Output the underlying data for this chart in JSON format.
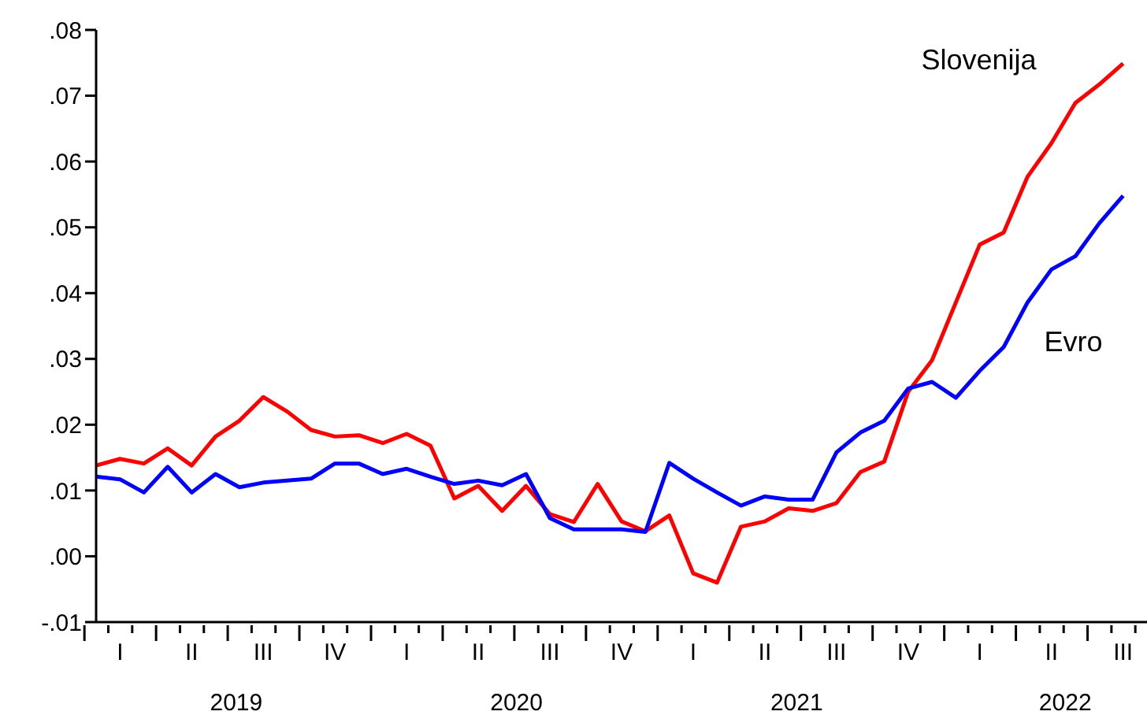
{
  "chart_data": {
    "type": "line",
    "categories": [
      null,
      "I",
      null,
      null,
      "II",
      null,
      null,
      "III",
      null,
      null,
      "IV",
      null,
      null,
      "I",
      null,
      null,
      "II",
      null,
      null,
      "III",
      null,
      null,
      "IV",
      null,
      null,
      "I",
      null,
      null,
      "II",
      null,
      null,
      "III",
      null,
      null,
      "IV",
      null,
      null,
      "I",
      null,
      null,
      "II",
      null,
      null,
      "III",
      null
    ],
    "series": [
      {
        "name": "Slovenija",
        "color": "#ff0000",
        "values": [
          0.0138,
          0.0148,
          0.0141,
          0.0164,
          0.0138,
          0.0182,
          0.0206,
          0.0242,
          0.022,
          0.0192,
          0.0182,
          0.0184,
          0.0172,
          0.0186,
          0.0168,
          0.0088,
          0.0107,
          0.0069,
          0.0107,
          0.0064,
          0.0052,
          0.011,
          0.0053,
          0.0038,
          0.0062,
          -0.0026,
          -0.004,
          0.0045,
          0.0053,
          0.0073,
          0.0069,
          0.0081,
          0.0128,
          0.0144,
          0.025,
          0.0298,
          0.0386,
          0.0474,
          0.0492,
          0.0577,
          0.0628,
          0.0689,
          0.0717,
          0.0749,
          null
        ]
      },
      {
        "name": "Evro",
        "color": "#0000ff",
        "values": [
          0.0121,
          0.0117,
          0.0097,
          0.0136,
          0.0097,
          0.0125,
          0.0105,
          0.0112,
          0.0115,
          0.0118,
          0.0141,
          0.0141,
          0.0125,
          0.0133,
          0.0121,
          0.011,
          0.0115,
          0.0108,
          0.0125,
          0.0058,
          0.0041,
          0.0041,
          0.0041,
          0.0037,
          0.0142,
          0.0118,
          0.0097,
          0.0077,
          0.0091,
          0.0086,
          0.0086,
          0.0158,
          0.0188,
          0.0206,
          0.0255,
          0.0265,
          0.0241,
          0.0282,
          0.0318,
          0.0386,
          0.0436,
          0.0456,
          0.0506,
          0.0548,
          null
        ]
      }
    ],
    "annotations": [
      "2019",
      "2020",
      "2021",
      "2022"
    ],
    "ylim": [
      -0.01,
      0.08
    ],
    "yticks": [
      {
        "value": -0.01,
        "label": "-.01"
      },
      {
        "value": 0,
        "label": ".00"
      },
      {
        "value": 0.01,
        "label": ".01"
      },
      {
        "value": 0.02,
        "label": ".02"
      },
      {
        "value": 0.03,
        "label": ".03"
      },
      {
        "value": 0.04,
        "label": ".04"
      },
      {
        "value": 0.05,
        "label": ".05"
      },
      {
        "value": 0.06,
        "label": ".06"
      },
      {
        "value": 0.07,
        "label": ".07"
      },
      {
        "value": 0.08,
        "label": ".08"
      }
    ],
    "line_style": "solid",
    "grid": false,
    "legend": false
  }
}
